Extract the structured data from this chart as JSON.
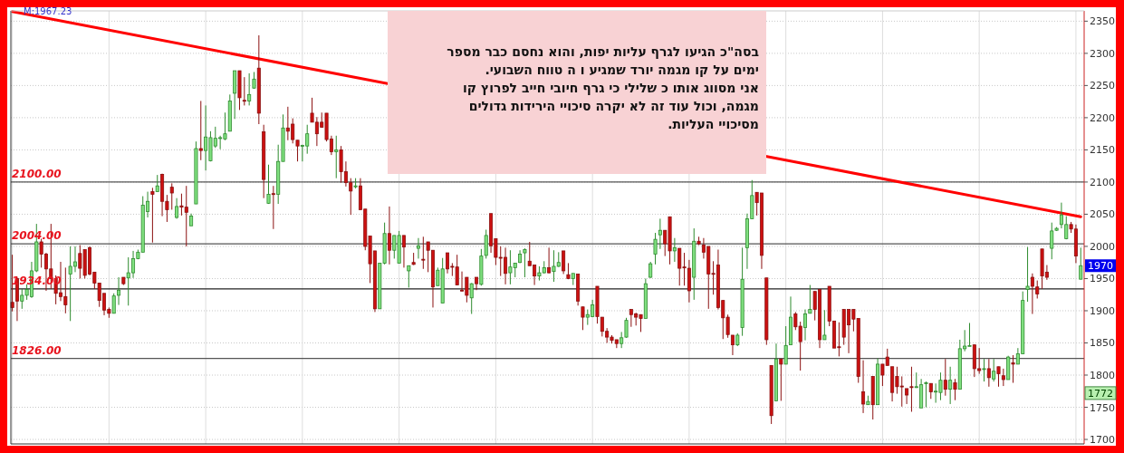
{
  "chart_data": {
    "type": "candlestick",
    "categories": [
      null,
      null,
      null,
      null,
      null,
      null,
      null,
      null,
      null,
      null,
      null,
      null,
      null,
      null,
      null,
      null,
      null,
      null,
      null,
      null,
      null,
      null,
      null,
      null,
      null,
      null,
      null,
      null,
      null,
      null,
      null,
      null,
      null,
      null,
      null,
      null,
      null,
      null,
      null,
      null,
      null,
      null,
      null,
      null,
      null,
      null,
      null,
      null,
      null,
      null,
      null,
      null,
      null,
      null,
      null,
      null,
      null,
      null,
      null,
      null,
      null,
      null,
      null,
      null,
      null,
      null,
      null,
      null,
      null,
      null,
      null,
      null,
      null,
      null,
      null,
      null,
      null,
      null,
      null,
      null,
      null,
      null,
      null,
      null,
      null,
      null,
      null,
      null,
      null,
      null,
      null,
      null,
      null,
      null,
      null,
      null,
      null,
      null,
      null,
      null,
      null,
      null,
      null,
      null,
      null,
      null,
      null,
      null,
      null,
      null,
      null,
      null,
      null,
      null,
      null,
      null,
      null,
      null,
      null,
      null,
      null,
      null,
      null,
      null,
      null,
      null,
      null,
      null,
      null,
      null,
      null,
      null,
      null,
      null,
      null,
      null,
      null,
      null,
      null,
      null,
      null,
      null,
      null,
      null,
      null,
      null,
      null,
      null,
      null,
      null,
      null,
      null,
      null,
      null,
      null,
      null,
      null,
      null,
      null,
      null,
      null,
      null,
      null,
      null,
      null,
      null,
      null,
      null,
      null,
      null,
      null,
      null,
      null,
      null,
      null,
      null,
      null,
      null,
      null,
      null,
      null,
      null,
      null,
      null,
      null,
      null,
      null,
      null,
      null,
      null,
      null,
      null,
      null,
      null,
      null,
      null,
      null,
      null,
      null,
      null,
      null,
      null,
      null,
      null,
      null,
      null,
      null,
      null,
      null,
      null,
      null,
      null,
      null,
      null,
      null,
      null,
      null,
      null,
      null,
      null,
      null,
      null
    ],
    "ohlc": [
      [
        1913,
        1987,
        1899,
        1905
      ],
      [
        1950,
        1952,
        1884,
        1915
      ],
      [
        1915,
        1934,
        1903,
        1924
      ],
      [
        1924,
        1941,
        1917,
        1933
      ],
      [
        1922,
        1976,
        1920,
        1962
      ],
      [
        1962,
        2035,
        1960,
        2007
      ],
      [
        2007,
        2012,
        1967,
        1988
      ],
      [
        1988,
        1990,
        1931,
        1965
      ],
      [
        1965,
        2035,
        1934,
        1950
      ],
      [
        1950,
        1955,
        1910,
        1927
      ],
      [
        1928,
        1976,
        1915,
        1922
      ],
      [
        1922,
        1967,
        1896,
        1909
      ],
      [
        1957,
        2000,
        1884,
        1969
      ],
      [
        1969,
        2000,
        1960,
        1976
      ],
      [
        1989,
        2002,
        1950,
        1966
      ],
      [
        1995,
        1995,
        1950,
        1955
      ],
      [
        1998,
        2000,
        1955,
        1957
      ],
      [
        1960,
        1960,
        1934,
        1943
      ],
      [
        1943,
        1943,
        1906,
        1916
      ],
      [
        1927,
        1927,
        1893,
        1901
      ],
      [
        1902,
        1905,
        1889,
        1896
      ],
      [
        1896,
        1927,
        1896,
        1923
      ],
      [
        1924,
        1952,
        1909,
        1932
      ],
      [
        1952,
        1952,
        1940,
        1942
      ],
      [
        1951,
        1983,
        1908,
        1959
      ],
      [
        1959,
        1993,
        1951,
        1981
      ],
      [
        1981,
        1995,
        1980,
        1991
      ],
      [
        1991,
        2078,
        1991,
        2064
      ],
      [
        2054,
        2085,
        2045,
        2070
      ],
      [
        2085,
        2091,
        2006,
        2081
      ],
      [
        2085,
        2111,
        2085,
        2094
      ],
      [
        2112,
        2113,
        2047,
        2070
      ],
      [
        2070,
        2080,
        2038,
        2057
      ],
      [
        2092,
        2098,
        2057,
        2083
      ],
      [
        2045,
        2075,
        2043,
        2062
      ],
      [
        2063,
        2082,
        2048,
        2061
      ],
      [
        2061,
        2094,
        2000,
        2053
      ],
      [
        2032,
        2051,
        2032,
        2047
      ],
      [
        2066,
        2163,
        2066,
        2152
      ],
      [
        2152,
        2226,
        2134,
        2149
      ],
      [
        2149,
        2219,
        2118,
        2170
      ],
      [
        2133,
        2179,
        2132,
        2169
      ],
      [
        2156,
        2186,
        2153,
        2168
      ],
      [
        2168,
        2172,
        2151,
        2169
      ],
      [
        2167,
        2208,
        2165,
        2175
      ],
      [
        2179,
        2236,
        2179,
        2226
      ],
      [
        2238,
        2273,
        2198,
        2273
      ],
      [
        2273,
        2273,
        2212,
        2231
      ],
      [
        2227,
        2263,
        2219,
        2226
      ],
      [
        2226,
        2269,
        2219,
        2236
      ],
      [
        2246,
        2271,
        2245,
        2260
      ],
      [
        2277,
        2328,
        2190,
        2207
      ],
      [
        2178,
        2189,
        2075,
        2104
      ],
      [
        2067,
        2127,
        2066,
        2081
      ],
      [
        2082,
        2094,
        2027,
        2081
      ],
      [
        2081,
        2158,
        2066,
        2132
      ],
      [
        2132,
        2205,
        2132,
        2184
      ],
      [
        2184,
        2217,
        2165,
        2179
      ],
      [
        2190,
        2199,
        2160,
        2166
      ],
      [
        2165,
        2165,
        2132,
        2156
      ],
      [
        2156,
        2158,
        2132,
        2157
      ],
      [
        2156,
        2189,
        2144,
        2175
      ],
      [
        2207,
        2231,
        2193,
        2193
      ],
      [
        2193,
        2201,
        2156,
        2175
      ],
      [
        2193,
        2208,
        2185,
        2185
      ],
      [
        2207,
        2207,
        2163,
        2166
      ],
      [
        2167,
        2172,
        2142,
        2147
      ],
      [
        2147,
        2172,
        2106,
        2150
      ],
      [
        2150,
        2156,
        2099,
        2116
      ],
      [
        2116,
        2132,
        2093,
        2099
      ],
      [
        2099,
        2106,
        2049,
        2086
      ],
      [
        2093,
        2106,
        2090,
        2094
      ],
      [
        2094,
        2106,
        2057,
        2057
      ],
      [
        2058,
        2058,
        1994,
        2000
      ],
      [
        2016,
        2016,
        1943,
        1973
      ],
      [
        1993,
        1993,
        1898,
        1903
      ],
      [
        1903,
        1974,
        1903,
        1974
      ],
      [
        1974,
        2037,
        1972,
        2020
      ],
      [
        2020,
        2062,
        1972,
        1994
      ],
      [
        1994,
        2017,
        1981,
        2017
      ],
      [
        1974,
        2024,
        1974,
        2017
      ],
      [
        2017,
        2017,
        1967,
        1999
      ],
      [
        1962,
        1970,
        1936,
        1970
      ],
      [
        1975,
        1990,
        1971,
        1972
      ],
      [
        1997,
        2013,
        1981,
        2001
      ],
      [
        1980,
        2015,
        1965,
        1979
      ],
      [
        2007,
        2007,
        1960,
        1994
      ],
      [
        1994,
        1994,
        1905,
        1937
      ],
      [
        1939,
        1967,
        1939,
        1963
      ],
      [
        1912,
        1982,
        1912,
        1965
      ],
      [
        1990,
        1990,
        1958,
        1965
      ],
      [
        1969,
        1974,
        1954,
        1968
      ],
      [
        1968,
        1987,
        1940,
        1940
      ],
      [
        1932,
        1961,
        1930,
        1931
      ],
      [
        1952,
        1952,
        1913,
        1924
      ],
      [
        1920,
        1943,
        1895,
        1942
      ],
      [
        1952,
        1952,
        1932,
        1942
      ],
      [
        1941,
        1996,
        1939,
        1985
      ],
      [
        1986,
        2026,
        1981,
        2017
      ],
      [
        2051,
        2051,
        1990,
        2001
      ],
      [
        2012,
        2012,
        1971,
        1983
      ],
      [
        1983,
        2000,
        1954,
        1982
      ],
      [
        1983,
        1998,
        1941,
        1958
      ],
      [
        1959,
        1994,
        1941,
        1968
      ],
      [
        1967,
        1974,
        1952,
        1974
      ],
      [
        1975,
        1994,
        1974,
        1988
      ],
      [
        1990,
        1997,
        1952,
        1995
      ],
      [
        1977,
        2007,
        1970,
        1970
      ],
      [
        1971,
        1971,
        1940,
        1954
      ],
      [
        1954,
        1969,
        1947,
        1959
      ],
      [
        1959,
        1977,
        1958,
        1967
      ],
      [
        1967,
        1998,
        1958,
        1959
      ],
      [
        1961,
        1994,
        1945,
        1969
      ],
      [
        1969,
        1991,
        1968,
        1975
      ],
      [
        1993,
        1993,
        1957,
        1962
      ],
      [
        1956,
        1974,
        1949,
        1950
      ],
      [
        1950,
        1958,
        1940,
        1958
      ],
      [
        1957,
        1957,
        1908,
        1915
      ],
      [
        1906,
        1906,
        1870,
        1890
      ],
      [
        1890,
        1902,
        1878,
        1894
      ],
      [
        1891,
        1917,
        1890,
        1909
      ],
      [
        1938,
        1938,
        1880,
        1891
      ],
      [
        1890,
        1890,
        1860,
        1868
      ],
      [
        1868,
        1873,
        1850,
        1859
      ],
      [
        1859,
        1862,
        1849,
        1854
      ],
      [
        1855,
        1855,
        1842,
        1849
      ],
      [
        1849,
        1867,
        1842,
        1858
      ],
      [
        1859,
        1889,
        1858,
        1885
      ],
      [
        1902,
        1902,
        1875,
        1894
      ],
      [
        1895,
        1897,
        1877,
        1890
      ],
      [
        1894,
        1894,
        1867,
        1888
      ],
      [
        1888,
        1950,
        1888,
        1942
      ],
      [
        1952,
        1976,
        1951,
        1973
      ],
      [
        1988,
        2021,
        1972,
        2011
      ],
      [
        2018,
        2043,
        1996,
        2025
      ],
      [
        2025,
        2025,
        1985,
        2004
      ],
      [
        2046,
        2046,
        1972,
        1993
      ],
      [
        1993,
        2013,
        1976,
        1998
      ],
      [
        1997,
        1997,
        1939,
        1966
      ],
      [
        1968,
        1990,
        1939,
        1967
      ],
      [
        1966,
        1979,
        1913,
        1931
      ],
      [
        1952,
        2028,
        1917,
        2008
      ],
      [
        2008,
        2015,
        2002,
        2004
      ],
      [
        2002,
        2013,
        1981,
        1991
      ],
      [
        2000,
        2000,
        1903,
        1957
      ],
      [
        1958,
        1977,
        1925,
        1957
      ],
      [
        1971,
        1995,
        1902,
        1905
      ],
      [
        1916,
        1916,
        1856,
        1889
      ],
      [
        1890,
        1894,
        1858,
        1863
      ],
      [
        1862,
        1862,
        1831,
        1847
      ],
      [
        1847,
        1865,
        1845,
        1862
      ],
      [
        1874,
        1998,
        1861,
        1949
      ],
      [
        1998,
        2051,
        1965,
        2043
      ],
      [
        2043,
        2103,
        2043,
        2079
      ],
      [
        2084,
        2084,
        2048,
        2068
      ],
      [
        2083,
        2083,
        1965,
        1986
      ],
      [
        1951,
        1951,
        1847,
        1855
      ],
      [
        1815,
        1815,
        1724,
        1737
      ],
      [
        1760,
        1849,
        1760,
        1825
      ],
      [
        1825,
        1825,
        1760,
        1817
      ],
      [
        1817,
        1876,
        1817,
        1846
      ],
      [
        1847,
        1922,
        1847,
        1890
      ],
      [
        1895,
        1898,
        1870,
        1875
      ],
      [
        1876,
        1883,
        1807,
        1852
      ],
      [
        1874,
        1902,
        1854,
        1895
      ],
      [
        1896,
        1940,
        1896,
        1902
      ],
      [
        1930,
        1930,
        1885,
        1902
      ],
      [
        1933,
        1933,
        1842,
        1855
      ],
      [
        1855,
        1901,
        1855,
        1862
      ],
      [
        1938,
        1938,
        1876,
        1884
      ],
      [
        1884,
        1884,
        1842,
        1842
      ],
      [
        1844,
        1882,
        1829,
        1843
      ],
      [
        1902,
        1902,
        1847,
        1859
      ],
      [
        1902,
        1902,
        1834,
        1878
      ],
      [
        1902,
        1902,
        1868,
        1887
      ],
      [
        1888,
        1888,
        1788,
        1798
      ],
      [
        1774,
        1823,
        1741,
        1755
      ],
      [
        1754,
        1768,
        1754,
        1759
      ],
      [
        1798,
        1798,
        1731,
        1754
      ],
      [
        1754,
        1826,
        1754,
        1817
      ],
      [
        1817,
        1817,
        1783,
        1800
      ],
      [
        1828,
        1841,
        1815,
        1815
      ],
      [
        1813,
        1813,
        1759,
        1773
      ],
      [
        1798,
        1813,
        1771,
        1782
      ],
      [
        1783,
        1798,
        1751,
        1782
      ],
      [
        1779,
        1779,
        1755,
        1769
      ],
      [
        1782,
        1813,
        1743,
        1781
      ],
      [
        1781,
        1804,
        1780,
        1782
      ],
      [
        1749,
        1794,
        1749,
        1785
      ],
      [
        1787,
        1790,
        1750,
        1788
      ],
      [
        1787,
        1787,
        1763,
        1774
      ],
      [
        1774,
        1787,
        1757,
        1775
      ],
      [
        1773,
        1804,
        1761,
        1792
      ],
      [
        1792,
        1825,
        1768,
        1778
      ],
      [
        1778,
        1813,
        1755,
        1792
      ],
      [
        1788,
        1794,
        1761,
        1778
      ],
      [
        1778,
        1855,
        1778,
        1841
      ],
      [
        1841,
        1870,
        1837,
        1845
      ],
      [
        1845,
        1881,
        1845,
        1846
      ],
      [
        1847,
        1847,
        1797,
        1810
      ],
      [
        1810,
        1842,
        1802,
        1807
      ],
      [
        1809,
        1825,
        1790,
        1810
      ],
      [
        1810,
        1825,
        1782,
        1796
      ],
      [
        1794,
        1825,
        1790,
        1806
      ],
      [
        1813,
        1813,
        1782,
        1802
      ],
      [
        1799,
        1810,
        1783,
        1793
      ],
      [
        1793,
        1830,
        1793,
        1828
      ],
      [
        1819,
        1831,
        1788,
        1817
      ],
      [
        1817,
        1842,
        1817,
        1833
      ],
      [
        1833,
        1930,
        1833,
        1916
      ],
      [
        1933,
        1999,
        1914,
        1938
      ],
      [
        1952,
        1958,
        1895,
        1938
      ],
      [
        1937,
        1947,
        1919,
        1926
      ],
      [
        1996,
        1996,
        1934,
        1954
      ],
      [
        1960,
        1971,
        1948,
        1952
      ],
      [
        1997,
        2037,
        1980,
        2024
      ],
      [
        2025,
        2030,
        2024,
        2028
      ],
      [
        2034,
        2068,
        2028,
        2049
      ],
      [
        2012,
        2047,
        2011,
        2034
      ],
      [
        2034,
        2038,
        2021,
        2027
      ],
      [
        2027,
        2034,
        1974,
        1985
      ],
      [
        1949,
        1998,
        1949,
        1970
      ]
    ],
    "colors": [
      "#cc1010",
      "#cc1010",
      "#80e080",
      "#80e080",
      "#80e080",
      "#80e080",
      "#cc1010",
      "#cc1010",
      "#cc1010",
      "#cc1010",
      "#cc1010",
      "#cc1010",
      "#80e080",
      "#80e080",
      "#cc1010",
      "#cc1010",
      "#cc1010",
      "#cc1010",
      "#cc1010",
      "#cc1010",
      "#cc1010",
      "#80e080",
      "#80e080",
      "#cc1010",
      "#80e080",
      "#80e080",
      "#80e080",
      "#80e080",
      "#80e080",
      "#cc1010",
      "#80e080",
      "#cc1010",
      "#cc1010",
      "#cc1010",
      "#80e080",
      "#cc1010",
      "#cc1010",
      "#80e080",
      "#80e080",
      "#cc1010",
      "#80e080",
      "#80e080",
      "#80e080",
      "#80e080",
      "#80e080",
      "#80e080",
      "#80e080",
      "#cc1010",
      "#cc1010",
      "#80e080",
      "#80e080",
      "#cc1010",
      "#cc1010",
      "#80e080",
      "#cc1010",
      "#80e080",
      "#80e080",
      "#cc1010",
      "#cc1010",
      "#cc1010",
      "#80e080",
      "#80e080",
      "#cc1010",
      "#cc1010",
      "#cc1010",
      "#cc1010",
      "#cc1010",
      "#80e080",
      "#cc1010",
      "#cc1010",
      "#cc1010",
      "#80e080",
      "#cc1010",
      "#cc1010",
      "#cc1010",
      "#cc1010",
      "#80e080",
      "#80e080",
      "#cc1010",
      "#80e080",
      "#80e080",
      "#cc1010",
      "#80e080",
      "#cc1010",
      "#80e080",
      "#cc1010",
      "#cc1010",
      "#cc1010",
      "#80e080",
      "#80e080",
      "#cc1010",
      "#cc1010",
      "#cc1010",
      "#cc1010",
      "#cc1010",
      "#80e080",
      "#cc1010",
      "#80e080",
      "#80e080",
      "#cc1010",
      "#cc1010",
      "#cc1010",
      "#cc1010",
      "#80e080",
      "#80e080",
      "#80e080",
      "#80e080",
      "#cc1010",
      "#cc1010",
      "#80e080",
      "#80e080",
      "#cc1010",
      "#80e080",
      "#80e080",
      "#cc1010",
      "#cc1010",
      "#80e080",
      "#cc1010",
      "#cc1010",
      "#80e080",
      "#80e080",
      "#cc1010",
      "#cc1010",
      "#cc1010",
      "#cc1010",
      "#cc1010",
      "#80e080",
      "#80e080",
      "#cc1010",
      "#cc1010",
      "#cc1010",
      "#80e080",
      "#80e080",
      "#80e080",
      "#80e080",
      "#cc1010",
      "#cc1010",
      "#80e080",
      "#cc1010",
      "#cc1010",
      "#cc1010",
      "#80e080",
      "#cc1010",
      "#cc1010",
      "#cc1010",
      "#cc1010",
      "#cc1010",
      "#cc1010",
      "#cc1010",
      "#cc1010",
      "#80e080",
      "#80e080",
      "#80e080",
      "#80e080",
      "#cc1010",
      "#cc1010",
      "#cc1010",
      "#cc1010",
      "#80e080",
      "#cc1010",
      "#80e080",
      "#80e080",
      "#cc1010",
      "#cc1010",
      "#80e080",
      "#80e080",
      "#cc1010",
      "#cc1010",
      "#80e080",
      "#cc1010",
      "#cc1010",
      "#cc1010",
      "#cc1010",
      "#cc1010",
      "#cc1010",
      "#cc1010",
      "#cc1010",
      "#80e080",
      "#cc1010",
      "#80e080",
      "#cc1010",
      "#cc1010",
      "#cc1010",
      "#cc1010",
      "#cc1010",
      "#cc1010",
      "#cc1010",
      "#80e080",
      "#80e080",
      "#80e080",
      "#cc1010",
      "#80e080",
      "#80e080",
      "#cc1010",
      "#80e080",
      "#cc1010",
      "#80e080",
      "#80e080",
      "#80e080",
      "#cc1010",
      "#cc1010",
      "#80e080",
      "#cc1010",
      "#80e080",
      "#cc1010",
      "#cc1010",
      "#80e080",
      "#cc1010",
      "#80e080",
      "#80e080",
      "#80e080",
      "#cc1010",
      "#cc1010",
      "#cc1010",
      "#cc1010",
      "#80e080",
      "#80e080",
      "#80e080",
      "#80e080",
      "#cc1010",
      "#cc1010",
      "#80e080"
    ],
    "ylim": [
      1693,
      2366
    ],
    "yticks": [
      1700,
      1750,
      1800,
      1850,
      1900,
      1950,
      2000,
      2050,
      2100,
      2150,
      2200,
      2250,
      2300,
      2350
    ],
    "grid": true,
    "series": [
      {
        "type": "line",
        "color": "#ff0000",
        "values": [
          2365,
          null,
          null,
          null,
          null,
          null,
          null,
          null,
          null,
          null,
          null,
          null,
          null,
          null,
          null,
          null,
          null,
          null,
          null,
          null,
          null,
          null,
          null,
          null,
          null,
          null,
          null,
          null,
          null,
          null,
          null,
          null,
          null,
          null,
          null,
          null,
          null,
          null,
          null,
          null,
          null,
          null,
          null,
          null,
          null,
          null,
          null,
          null,
          null,
          null,
          null,
          null,
          null,
          null,
          null,
          null,
          null,
          null,
          null,
          null,
          null,
          null,
          null,
          null,
          null,
          null,
          null,
          null,
          null,
          null,
          null,
          null,
          null,
          null,
          null,
          null,
          null,
          null,
          null,
          null,
          null,
          null,
          null,
          null,
          null,
          null,
          null,
          null,
          null,
          null,
          null,
          null,
          null,
          null,
          null,
          null,
          null,
          null,
          null,
          null,
          null,
          null,
          null,
          null,
          null,
          null,
          null,
          null,
          null,
          null,
          null,
          null,
          null,
          null,
          null,
          null,
          null,
          null,
          null,
          null,
          null,
          null,
          null,
          null,
          null,
          null,
          null,
          null,
          null,
          null,
          null,
          null,
          null,
          null,
          null,
          null,
          null,
          null,
          null,
          null,
          null,
          null,
          null,
          null,
          null,
          null,
          null,
          null,
          null,
          null,
          null,
          null,
          null,
          null,
          null,
          null,
          null,
          null,
          null,
          null,
          null,
          null,
          null,
          null,
          null,
          null,
          null,
          null,
          null,
          null,
          null,
          null,
          null,
          null,
          null,
          null,
          null,
          null,
          null,
          null,
          null,
          null,
          null,
          null,
          null,
          null,
          null,
          null,
          null,
          null,
          null,
          null,
          null,
          null,
          null,
          null,
          null,
          null,
          null,
          null,
          null,
          null,
          null,
          null,
          null,
          null,
          null,
          null,
          null,
          null,
          null,
          null,
          null,
          null,
          null,
          null,
          null,
          null,
          null,
          null,
          null,
          2046
        ]
      }
    ],
    "ref_lines": [
      {
        "axis": "y",
        "value": 2100,
        "label": "2100.00",
        "color": "#555555"
      },
      {
        "axis": "y",
        "value": 2004,
        "label": "2004.00",
        "color": "#555555"
      },
      {
        "axis": "y",
        "value": 1934,
        "label": "1934.00",
        "color": "#222222"
      },
      {
        "axis": "y",
        "value": 1826,
        "label": "1826.00",
        "color": "#555555"
      }
    ],
    "annotations": [
      "M:1967.23",
      "בסה\"כ הגיעו לגרף עליות יפות, והוא נחסם  כבר מספר\nימים  על קו מגמה יורד שמגיע ו ה טווח השבועי.\nאני מסווג אותו כ שלילי כי  גרף חיובי  חייב לפרוץ קו\nמגמה, וכול עוד זה לא יקרה  סיכויי הירידות גדולים\nמסיכויי  העליות.",
      {
        "text": "1970",
        "y": 1970
      },
      {
        "text": "1772",
        "y": 1772
      }
    ]
  }
}
